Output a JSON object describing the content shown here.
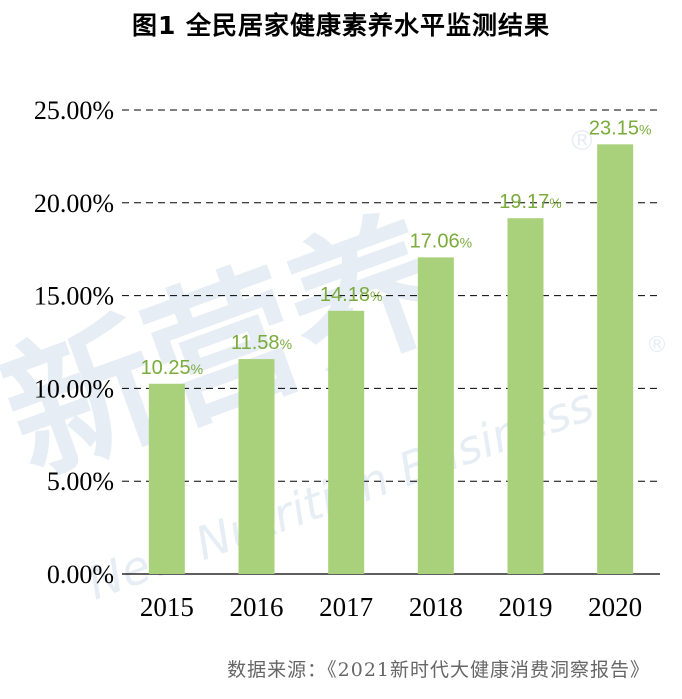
{
  "title": "图1  全民居家健康素养水平监测结果",
  "source": "数据来源：《2021新时代大健康消费洞察报告》",
  "watermark": {
    "text_cn": "新营养",
    "text_en": "New Nutrition Business",
    "mark": "®"
  },
  "colors": {
    "bar": "#a9d07a",
    "label": "#7aab3c",
    "grid": "#000000",
    "axis_text": "#000000"
  },
  "chart_data": {
    "type": "bar",
    "title": "图1  全民居家健康素养水平监测结果",
    "categories": [
      "2015",
      "2016",
      "2017",
      "2018",
      "2019",
      "2020"
    ],
    "values": [
      10.25,
      11.58,
      14.18,
      17.06,
      19.17,
      23.15
    ],
    "data_labels": [
      "10.25%",
      "11.58%",
      "14.18%",
      "17.06%",
      "19.17%",
      "23.15%"
    ],
    "y_ticks": [
      "0.00%",
      "5.00%",
      "10.00%",
      "15.00%",
      "20.00%",
      "25.00%"
    ],
    "ylim": [
      0,
      25
    ],
    "xlabel": "",
    "ylabel": "",
    "grid": "dashed horizontal",
    "legend": "none"
  }
}
